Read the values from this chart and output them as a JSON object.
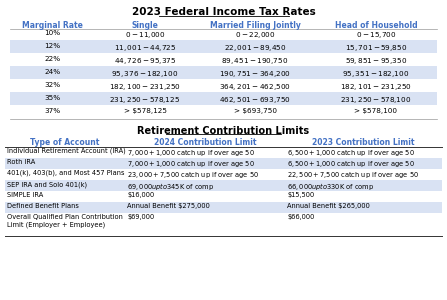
{
  "title": "2023 Federal Income Tax Rates",
  "tax_table": {
    "headers": [
      "Marginal Rate",
      "Single",
      "Married Filing Jointly",
      "Head of Household"
    ],
    "rows": [
      [
        "10%",
        "$0 - $11,000",
        "$0 - $22,000",
        "$0 - $15,700"
      ],
      [
        "12%",
        "$11,001 - $44,725",
        "$22,001 - $89,450",
        "$15,701 - $59,850"
      ],
      [
        "22%",
        "$44,726 - $95,375",
        "$89,451 - $190,750",
        "$59,851 - $95,350"
      ],
      [
        "24%",
        "$95,376 - $182,100",
        "$190,751 - $364,200",
        "$95,351 - $182,100"
      ],
      [
        "32%",
        "$182,100 - $231,250",
        "$364,201 - $462,500",
        "$182,101 - $231,250"
      ],
      [
        "35%",
        "$231,250 - $578,125",
        "$462,501 - $693,750",
        "$231,250 - $578,100"
      ],
      [
        "37%",
        "> $578,125",
        "> $693,750",
        "> $578,100"
      ]
    ]
  },
  "retirement_title": "Retirement Contribution Limits",
  "retirement_table": {
    "headers": [
      "Type of Account",
      "2024 Contribution Limit",
      "2023 Contribution Limit"
    ],
    "rows": [
      [
        "Individual Retirement Account (IRA)",
        "$7,000 + $1,000 catch up if over age 50",
        "$6,500 + $1,000 catch up if over age 50"
      ],
      [
        "Roth IRA",
        "$7,000 + $1,000 catch up if over age 50",
        "$6,500 + $1,000 catch up if over age 50"
      ],
      [
        "401(k), 403(b), and Most 457 Plans",
        "$23,000 + $7,500 catch up if over age 50",
        "$22,500 + $7,500 catch up if over age 50"
      ],
      [
        "SEP IRA and Solo 401(k)",
        "$69,000 up to $345K of comp",
        "$66,000 up to $330K of comp"
      ],
      [
        "SIMPLE IRA",
        "$16,000",
        "$15,500"
      ],
      [
        "Defined Benefit Plans",
        "Annual Benefit $275,000",
        "Annual Benefit $265,000"
      ],
      [
        "Overall Qualified Plan Contribution\nLimit (Employer + Employee)",
        "$69,000",
        "$66,000"
      ]
    ]
  },
  "header_color": "#4472C4",
  "alt_row_color": "#D9E2F3",
  "white_row_color": "#FFFFFF",
  "background_color": "#FFFFFF",
  "text_color": "#000000",
  "header_text_color": "#4472C4",
  "border_color": "#000000"
}
